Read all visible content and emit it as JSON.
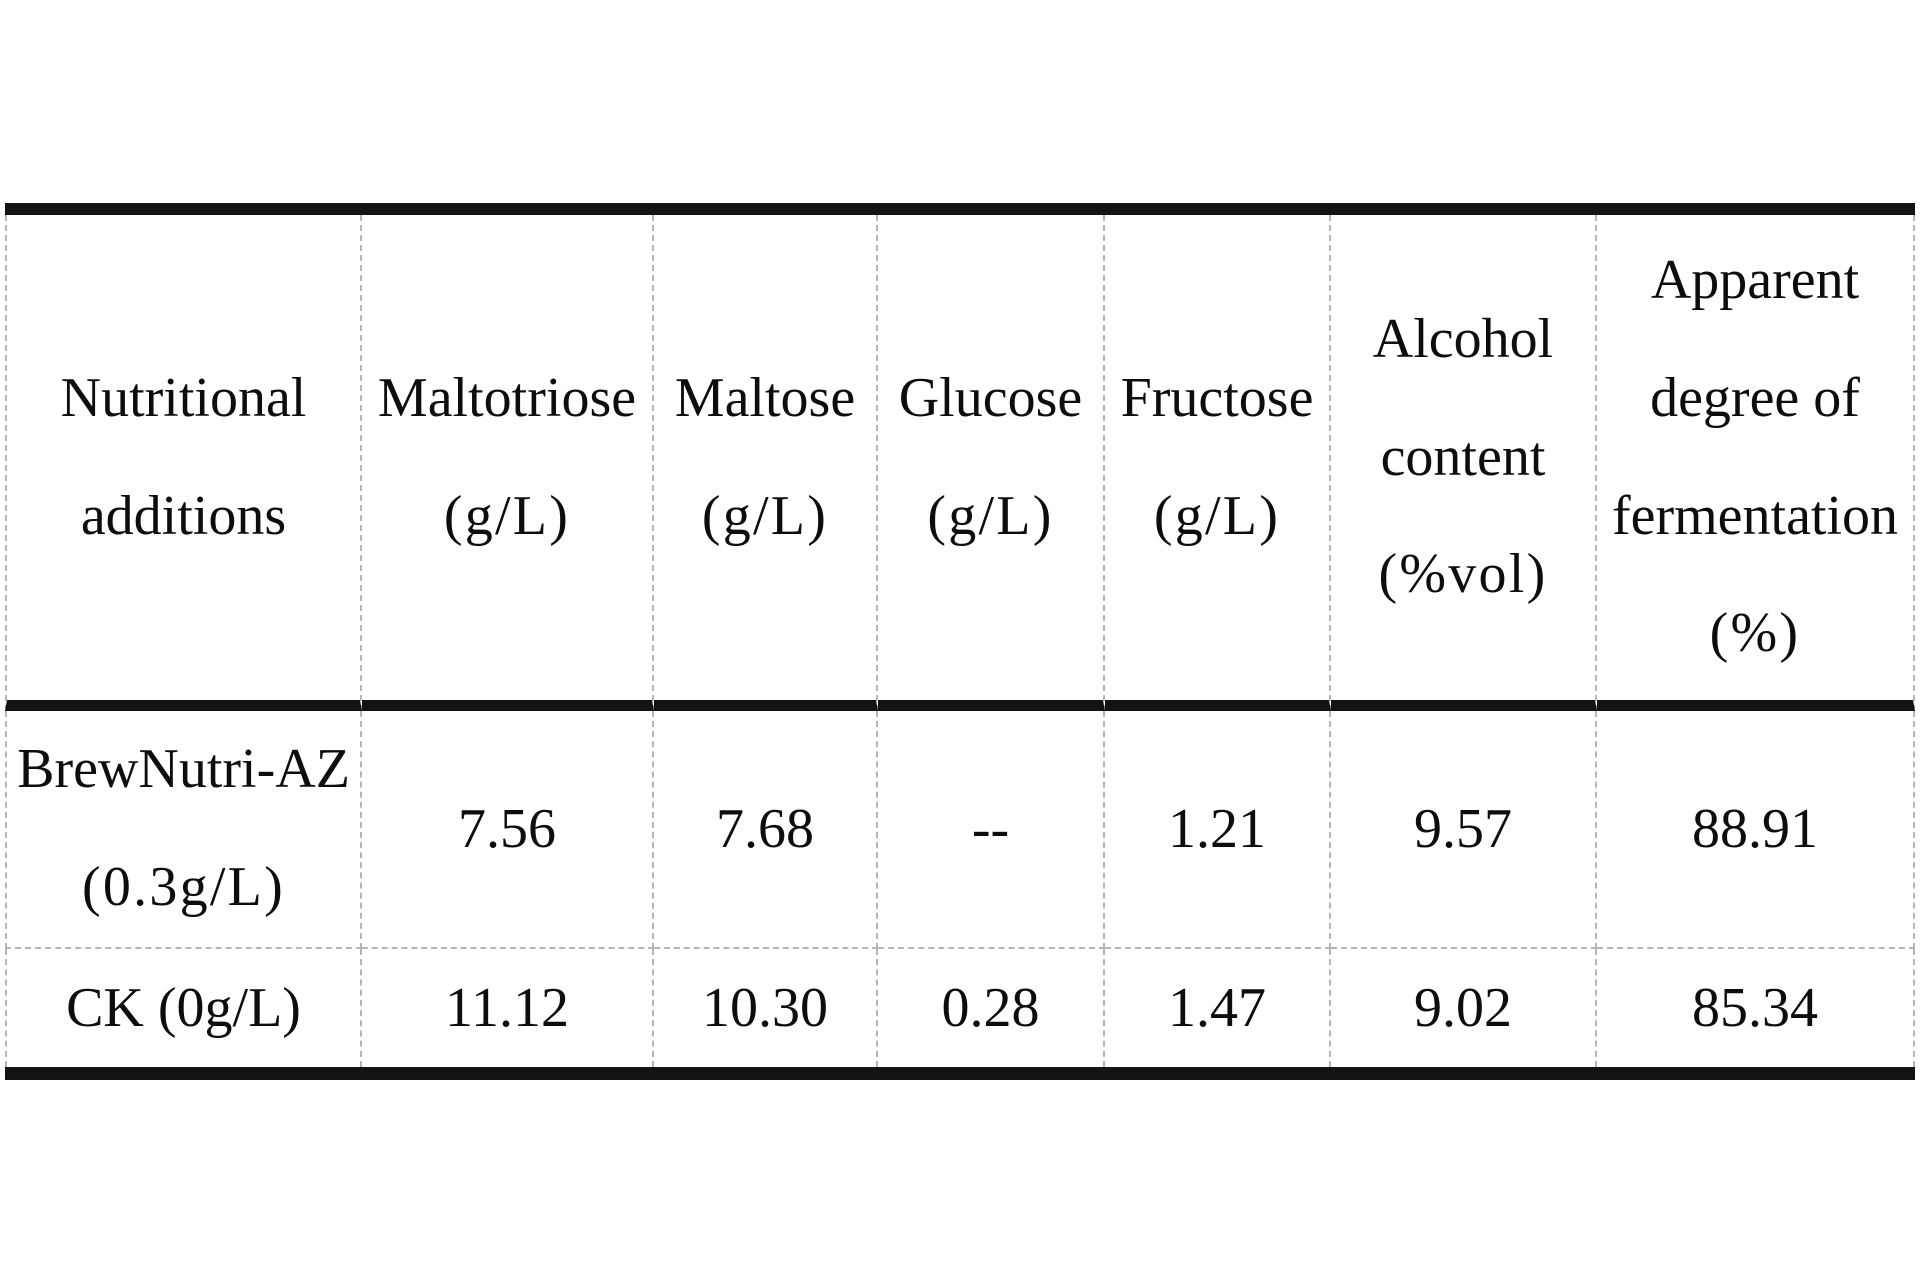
{
  "table": {
    "header": {
      "columns": [
        {
          "id": "nutritional-additions",
          "lines": [
            "Nutritional",
            "additions"
          ]
        },
        {
          "id": "maltotriose",
          "lines": [
            "Maltotriose",
            "(g/L)"
          ]
        },
        {
          "id": "maltose",
          "lines": [
            "Maltose",
            "(g/L)"
          ]
        },
        {
          "id": "glucose",
          "lines": [
            "Glucose",
            "(g/L)"
          ]
        },
        {
          "id": "fructose",
          "lines": [
            "Fructose",
            "(g/L)"
          ]
        },
        {
          "id": "alcohol-content",
          "lines": [
            "Alcohol",
            "content",
            "(%vol)"
          ]
        },
        {
          "id": "apparent-degree-fermentation",
          "lines": [
            "Apparent",
            "degree of",
            "fermentation",
            "(%)"
          ]
        }
      ]
    },
    "rows": [
      {
        "label_line1": "BrewNutri-AZ",
        "label_line2": "(0.3g/L)",
        "maltotriose": "7.56",
        "maltose": "7.68",
        "glucose": "--",
        "fructose": "1.21",
        "alcohol": "9.57",
        "fermentation": "88.91"
      },
      {
        "label_line1": "CK (0g/L)",
        "label_line2": "",
        "maltotriose": "11.12",
        "maltose": "10.30",
        "glucose": "0.28",
        "fructose": "1.47",
        "alcohol": "9.02",
        "fermentation": "85.34"
      }
    ],
    "colors": {
      "rule": "#131313",
      "gridline": "#b5b5b5",
      "text": "#0d0d0d",
      "background": "#ffffff"
    }
  }
}
